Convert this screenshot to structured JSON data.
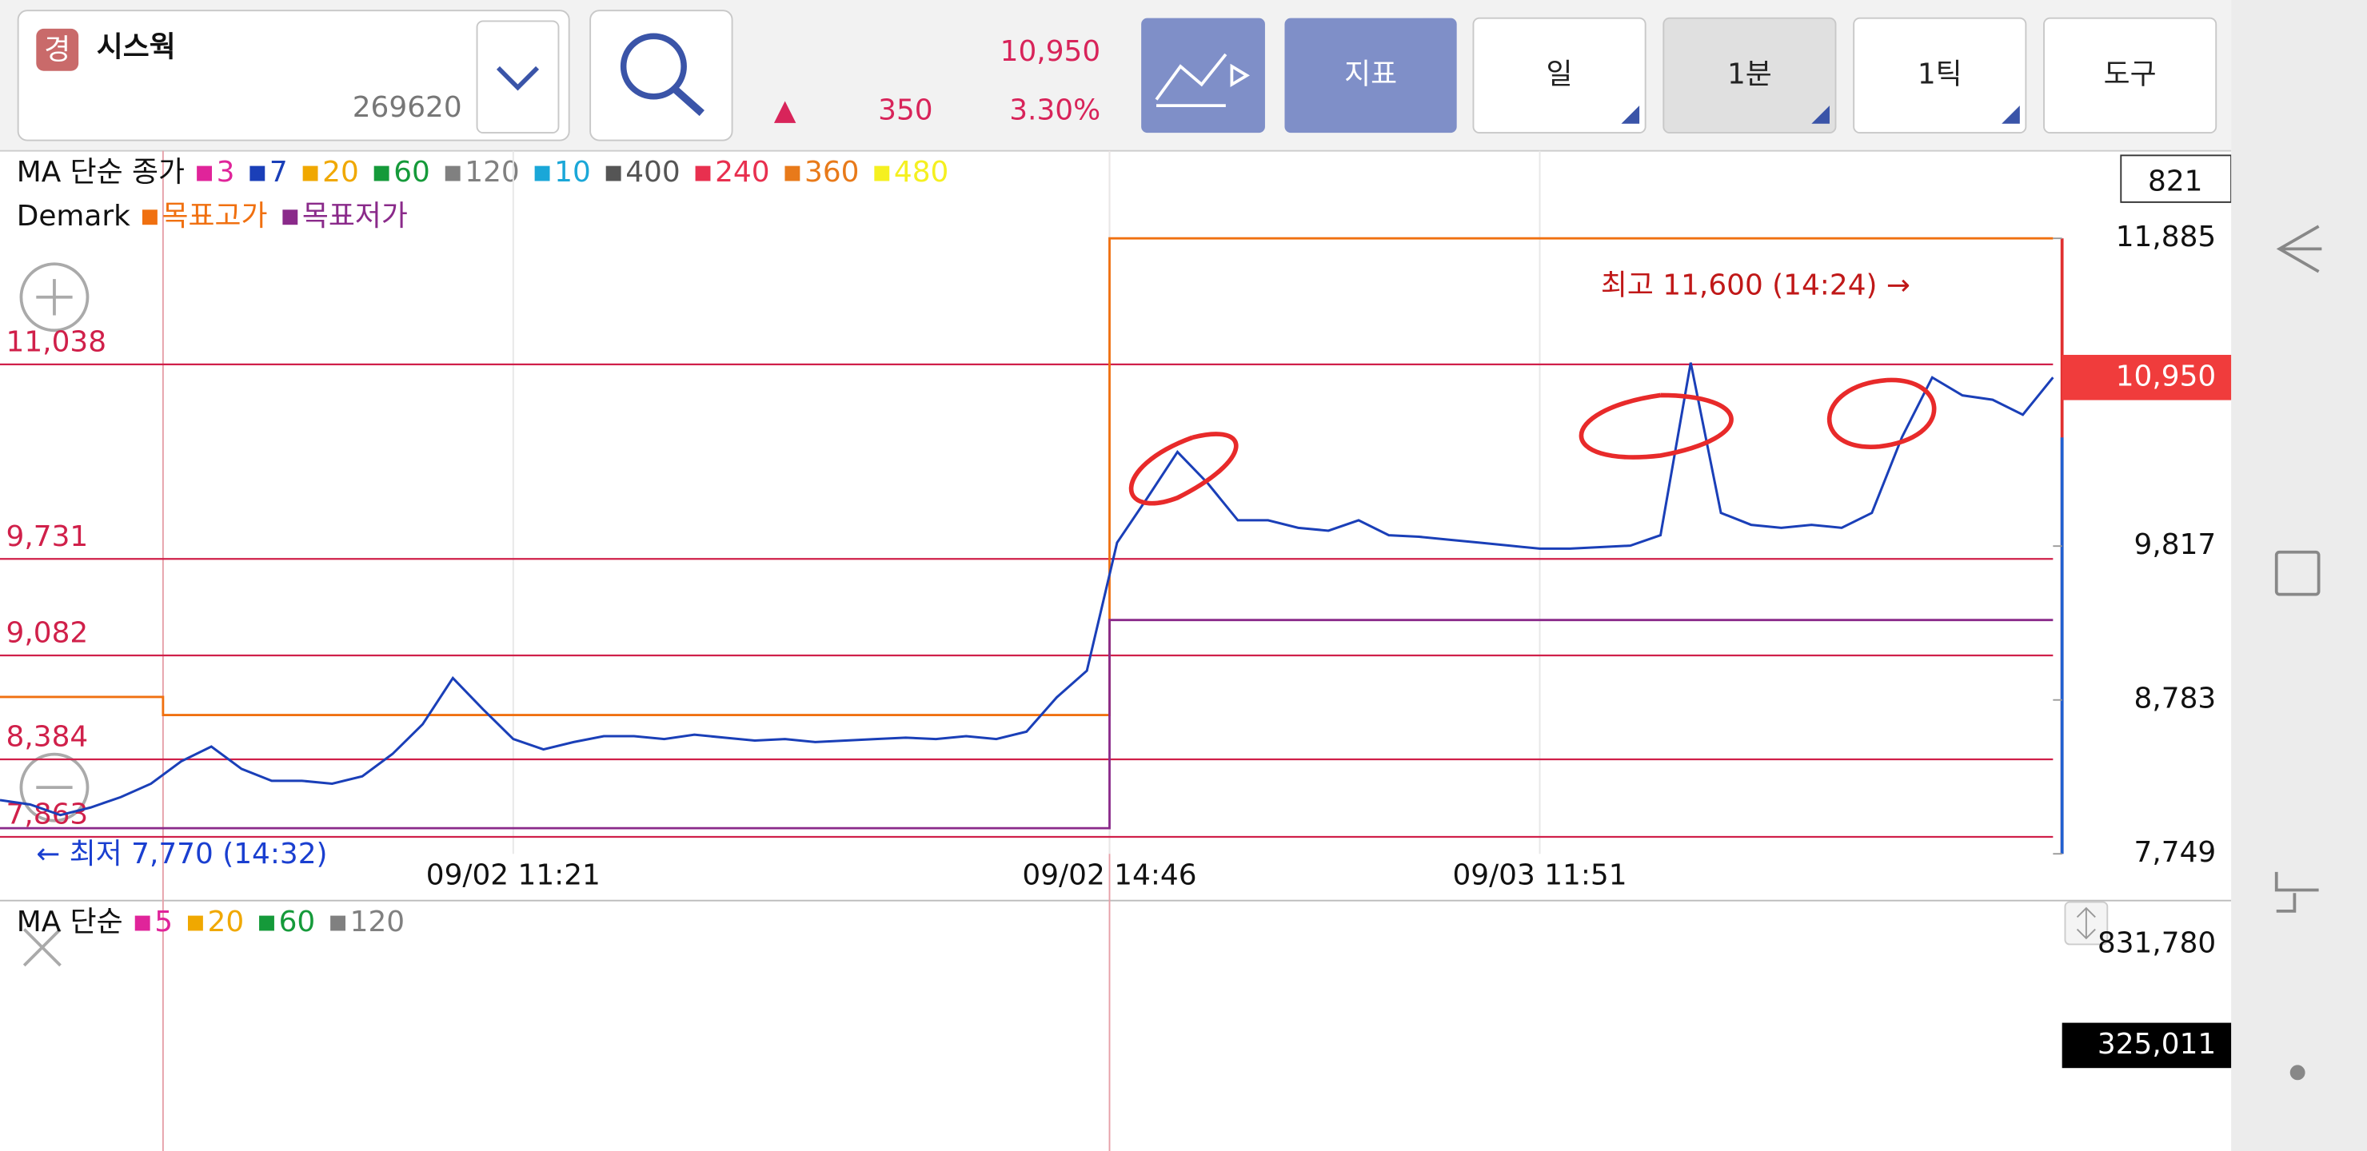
{
  "header": {
    "badge": "경",
    "name": "시스웍",
    "code": "269620",
    "price": "10,950",
    "arrow": "▲",
    "change": "350",
    "change_pct": "3.30%",
    "buttons": [
      "지표",
      "일",
      "1분",
      "1틱",
      "도구"
    ]
  },
  "legend": {
    "ma_label": "MA 단순 종가",
    "ma_items": [
      {
        "name": "3",
        "color": "#e0249a"
      },
      {
        "name": "7",
        "color": "#1a3fb8"
      },
      {
        "name": "20",
        "color": "#f0a800"
      },
      {
        "name": "60",
        "color": "#159a3a"
      },
      {
        "name": "120",
        "color": "#808080"
      },
      {
        "name": "10",
        "color": "#1aa7d8"
      },
      {
        "name": "400",
        "color": "#555555"
      },
      {
        "name": "240",
        "color": "#e8304f"
      },
      {
        "name": "360",
        "color": "#e87a1a"
      },
      {
        "name": "480",
        "color": "#f5f020"
      }
    ],
    "demark_label": "Demark",
    "demark_items": [
      {
        "name": "목표고가",
        "color": "#f07010"
      },
      {
        "name": "목표저가",
        "color": "#8a2a8a"
      }
    ]
  },
  "chart_data": {
    "type": "line",
    "x": [
      0,
      4,
      8,
      12,
      16,
      20,
      24,
      28,
      32,
      36,
      40,
      44,
      48,
      52,
      56,
      60,
      64,
      68,
      72,
      76,
      80,
      84,
      88,
      92,
      96,
      100,
      104,
      108,
      112,
      116,
      120,
      124,
      128,
      132,
      136,
      140,
      144,
      148,
      152,
      156,
      160,
      164,
      168,
      172,
      176,
      180,
      184,
      188,
      192,
      196,
      200,
      204,
      208,
      212,
      216,
      220,
      224,
      228,
      232,
      236,
      240,
      244,
      248,
      252,
      256,
      260,
      264,
      268,
      272
    ],
    "values": [
      8110,
      8080,
      8010,
      8060,
      8130,
      8220,
      8370,
      8470,
      8320,
      8240,
      8240,
      8220,
      8270,
      8420,
      8620,
      8930,
      8720,
      8520,
      8450,
      8500,
      8540,
      8540,
      8520,
      8550,
      8530,
      8510,
      8520,
      8500,
      8510,
      8520,
      8530,
      8520,
      8540,
      8520,
      8570,
      8800,
      8980,
      9840,
      10140,
      10450,
      10240,
      9990,
      9990,
      9940,
      9920,
      9990,
      9890,
      9880,
      9860,
      9840,
      9820,
      9800,
      9800,
      9810,
      9820,
      9890,
      11050,
      10040,
      9960,
      9940,
      9960,
      9940,
      10040,
      10550,
      10950,
      10830,
      10800,
      10700,
      10950
    ],
    "color": "#1a3fb8",
    "xlim": [
      0,
      272
    ],
    "xticks": [
      {
        "value": 68,
        "label": "09/02 11:21"
      },
      {
        "value": 147,
        "label": "09/02 14:46"
      },
      {
        "value": 204,
        "label": "09/03 11:51"
      }
    ],
    "ylim": [
      7749,
      11885
    ],
    "yticks": [
      {
        "value": 11885,
        "label": "11,885"
      },
      {
        "value": 9817,
        "label": "9,817"
      },
      {
        "value": 8783,
        "label": "8,783"
      },
      {
        "value": 7749,
        "label": "7,749"
      }
    ],
    "levels": [
      {
        "value": 11038,
        "label": "11,038"
      },
      {
        "value": 9731,
        "label": "9,731"
      },
      {
        "value": 9082,
        "label": "9,082"
      },
      {
        "value": 8384,
        "label": "8,384"
      },
      {
        "value": 7863,
        "label": "7,863"
      }
    ],
    "level_color": "#d0204a",
    "price_tag": {
      "value": 10950,
      "label": "10,950"
    },
    "annotations": [
      "최고 11,600 (14:24) →",
      "← 최저 7,770 (14:32)"
    ]
  },
  "volume": {
    "legend_label": "MA 단순",
    "items": [
      {
        "name": "5",
        "color": "#e0249a"
      },
      {
        "name": "20",
        "color": "#f0a800"
      },
      {
        "name": "60",
        "color": "#159a3a"
      },
      {
        "name": "120",
        "color": "#808080"
      }
    ],
    "tick": "831,780",
    "tag": "325,011"
  }
}
